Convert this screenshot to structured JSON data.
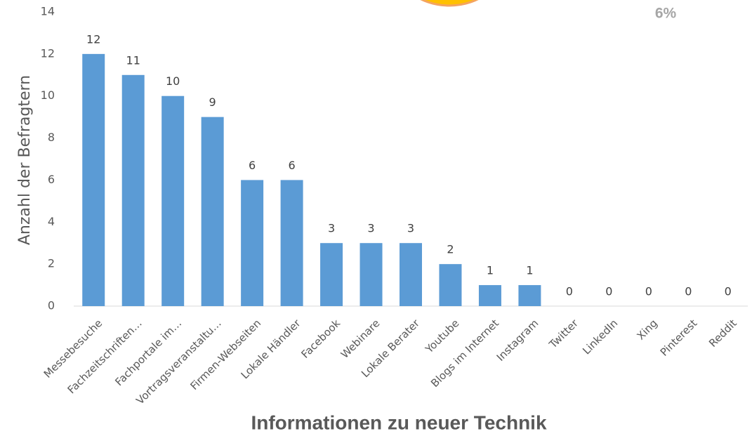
{
  "chart_data": {
    "type": "bar",
    "x_label": "Informationen zu neuer Technik",
    "y_label": "Anzahl der Befragtern",
    "annotations": [
      "6%"
    ],
    "categories": [
      "Messebesuche",
      "Fachzeitschriften…",
      "Fachportale im…",
      "Vortragsveranstaltu…",
      "Firmen-Webseiten",
      "Lokale Händler",
      "Facebook",
      "Webinare",
      "Lokale Berater",
      "Youtube",
      "Blogs im Internet",
      "Instagram",
      "Twitter",
      "LinkedIn",
      "Xing",
      "Pinterest",
      "Reddit"
    ],
    "values": [
      12,
      11,
      10,
      9,
      6,
      6,
      3,
      3,
      3,
      2,
      1,
      1,
      0,
      0,
      0,
      0,
      0
    ],
    "color": "#5b9bd5",
    "ylim": [
      0,
      14
    ],
    "yticks": [
      0,
      2,
      4,
      6,
      8,
      10,
      12,
      14
    ],
    "grid": false
  }
}
